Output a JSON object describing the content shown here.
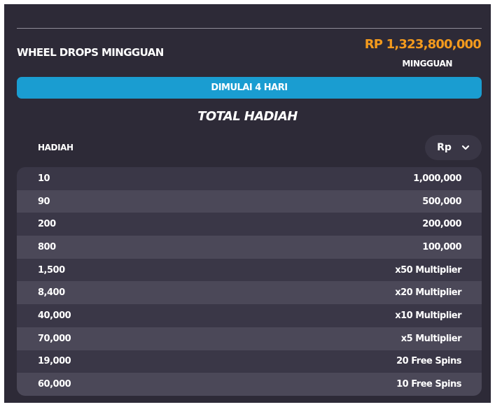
{
  "header": {
    "title": "WHEEL DROPS MINGGUAN",
    "amount": "RP 1,323,800,000",
    "period": "MINGGUAN"
  },
  "status": {
    "start_label": "DIMULAI 4 HARI"
  },
  "prizes": {
    "section_title": "TOTAL HADIAH",
    "column_label": "HADIAH",
    "currency": "Rp",
    "rows": [
      {
        "count": "10",
        "prize": "1,000,000"
      },
      {
        "count": "90",
        "prize": "500,000"
      },
      {
        "count": "200",
        "prize": "200,000"
      },
      {
        "count": "800",
        "prize": "100,000"
      },
      {
        "count": "1,500",
        "prize": "x50 Multiplier"
      },
      {
        "count": "8,400",
        "prize": "x20 Multiplier"
      },
      {
        "count": "40,000",
        "prize": "x10 Multiplier"
      },
      {
        "count": "70,000",
        "prize": "x5 Multiplier"
      },
      {
        "count": "19,000",
        "prize": "20 Free Spins"
      },
      {
        "count": "60,000",
        "prize": "10 Free Spins"
      }
    ]
  },
  "colors": {
    "panel": "#2d2a37",
    "accent_orange": "#f39a1d",
    "accent_blue": "#1a9dd1"
  }
}
